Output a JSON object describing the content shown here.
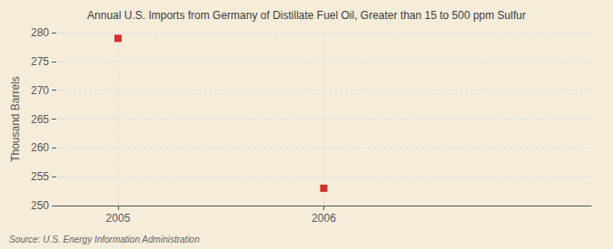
{
  "chart_data": {
    "type": "scatter",
    "title": "Annual U.S. Imports from Germany of Distillate Fuel Oil, Greater than 15 to 500 ppm Sulfur",
    "y_label": "Thousand Barrels",
    "annotation": "Source: U.S. Energy Information Administration",
    "x": [
      2005,
      2006
    ],
    "values": [
      279,
      253
    ],
    "color": "#cc0000",
    "marker": "square",
    "xlim": [
      2004.7,
      2007.3
    ],
    "xticks": [
      2005,
      2006
    ],
    "ylim": [
      250,
      280
    ],
    "yticks": [
      250,
      255,
      260,
      265,
      270,
      275,
      280
    ],
    "grid": true
  }
}
